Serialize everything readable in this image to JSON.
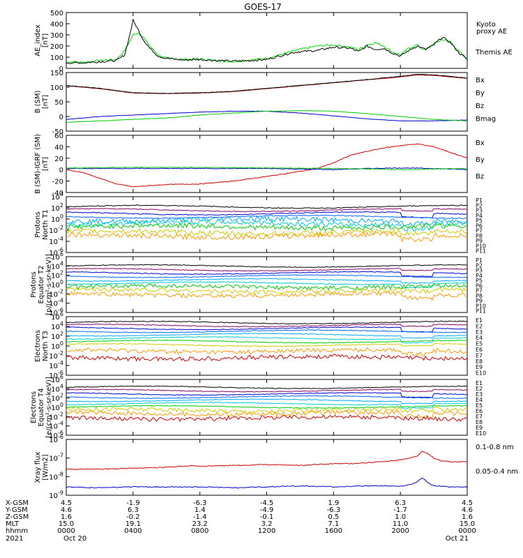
{
  "title": "GOES-17",
  "chart_data": [
    {
      "type": "line",
      "ylabel": [
        "AE_index",
        "[nT]"
      ],
      "ylim": [
        0,
        500
      ],
      "yticks": [
        "0",
        "100",
        "200",
        "300",
        "400",
        "500"
      ],
      "legend": [
        {
          "text": "Kyoto",
          "color": "#00cc00"
        },
        {
          "text": "proxy AE",
          "color": "#00cc00"
        },
        {
          "text": "Themis AE",
          "color": "#000000"
        }
      ],
      "series": [
        {
          "color": "#00dd00",
          "x": [
            0,
            1,
            2,
            3,
            3.5,
            4,
            4.3,
            4.6,
            5,
            5.5,
            6,
            7,
            8,
            9,
            10,
            11,
            12,
            12.5,
            13,
            13.5,
            14,
            15,
            16,
            17,
            17.5,
            18,
            18.5,
            19,
            19.5,
            20,
            20.5,
            21,
            21.5,
            22,
            22.5,
            23,
            23.5,
            24
          ],
          "values": [
            60,
            55,
            70,
            80,
            160,
            300,
            320,
            280,
            200,
            120,
            90,
            80,
            85,
            70,
            60,
            75,
            90,
            110,
            130,
            150,
            170,
            200,
            210,
            190,
            170,
            210,
            230,
            200,
            150,
            120,
            180,
            210,
            160,
            220,
            260,
            240,
            150,
            90
          ]
        },
        {
          "color": "#000000",
          "x": [
            0,
            1,
            2,
            3,
            3.5,
            3.8,
            4,
            4.3,
            4.6,
            5,
            5.5,
            6,
            7,
            8,
            9,
            10,
            11,
            12,
            12.5,
            13,
            13.5,
            14,
            15,
            16,
            17,
            17.5,
            18,
            18.5,
            19,
            19.5,
            20,
            20.5,
            21,
            21.5,
            22,
            22.5,
            23,
            23.5,
            24
          ],
          "values": [
            50,
            50,
            60,
            70,
            120,
            300,
            430,
            350,
            260,
            180,
            110,
            90,
            75,
            80,
            70,
            65,
            70,
            80,
            100,
            120,
            140,
            150,
            160,
            190,
            180,
            150,
            200,
            170,
            180,
            140,
            110,
            160,
            200,
            170,
            210,
            280,
            230,
            140,
            80
          ]
        }
      ]
    },
    {
      "type": "line",
      "ylabel": [
        "B (SM)",
        "[nT]"
      ],
      "ylim": [
        -50,
        150
      ],
      "yticks": [
        "-50",
        "0",
        "50",
        "100",
        "150"
      ],
      "legend": [
        {
          "text": "Bx",
          "color": "#0000cc"
        },
        {
          "text": "By",
          "color": "#00cc00"
        },
        {
          "text": "Bz",
          "color": "#cc0000"
        },
        {
          "text": "Bmag",
          "color": "#000000"
        }
      ],
      "series": [
        {
          "color": "#cc0000",
          "x": [
            0,
            2,
            4,
            6,
            8,
            10,
            12,
            14,
            16,
            18,
            20,
            21,
            22,
            23,
            24
          ],
          "values": [
            105,
            95,
            80,
            78,
            80,
            85,
            95,
            105,
            115,
            125,
            135,
            142,
            140,
            135,
            130
          ]
        },
        {
          "color": "#000000",
          "x": [
            0,
            2,
            4,
            6,
            8,
            10,
            12,
            14,
            16,
            18,
            20,
            21,
            22,
            23,
            24
          ],
          "values": [
            106,
            96,
            81,
            79,
            81,
            86,
            96,
            106,
            116,
            126,
            137,
            144,
            142,
            137,
            131
          ]
        },
        {
          "color": "#0000cc",
          "x": [
            0,
            2,
            4,
            6,
            8,
            10,
            12,
            14,
            16,
            18,
            20,
            22,
            24
          ],
          "values": [
            -10,
            0,
            5,
            10,
            15,
            18,
            18,
            12,
            2,
            -8,
            -15,
            -15,
            -12
          ]
        },
        {
          "color": "#00cc00",
          "x": [
            0,
            2,
            4,
            6,
            8,
            10,
            12,
            14,
            16,
            18,
            20,
            22,
            24
          ],
          "values": [
            -20,
            -15,
            -10,
            -5,
            5,
            12,
            18,
            20,
            18,
            10,
            0,
            -10,
            -15
          ]
        }
      ]
    },
    {
      "type": "line",
      "ylabel": [
        "B (SM)-IGRF (SM)",
        "[nT]"
      ],
      "ylim": [
        -40,
        60
      ],
      "yticks": [
        "-40",
        "-20",
        "0",
        "20",
        "40",
        "60"
      ],
      "legend": [
        {
          "text": "Bx",
          "color": "#0000cc"
        },
        {
          "text": "By",
          "color": "#00cc00"
        },
        {
          "text": "Bz",
          "color": "#cc0000"
        }
      ],
      "series": [
        {
          "color": "#cc0000",
          "x": [
            0,
            1,
            2,
            3,
            4,
            5,
            6,
            8,
            10,
            12,
            14,
            15,
            16,
            17,
            18,
            19,
            20,
            21,
            22,
            23,
            24
          ],
          "values": [
            0,
            -5,
            -15,
            -25,
            -30,
            -28,
            -26,
            -25,
            -20,
            -12,
            -3,
            2,
            12,
            25,
            32,
            38,
            42,
            45,
            40,
            30,
            20
          ]
        },
        {
          "color": "#0000cc",
          "x": [
            0,
            4,
            8,
            12,
            16,
            18,
            20,
            22,
            24
          ],
          "values": [
            2,
            2,
            2,
            2,
            0,
            2,
            3,
            2,
            0
          ]
        },
        {
          "color": "#00cc00",
          "x": [
            0,
            4,
            8,
            12,
            16,
            18,
            20,
            22,
            24
          ],
          "values": [
            3,
            4,
            4,
            3,
            2,
            1,
            0,
            1,
            2
          ]
        }
      ]
    },
    {
      "type": "line",
      "ylabel": [
        "Protons",
        "North T1"
      ],
      "log": true,
      "ylim": [
        -6,
        4
      ],
      "yticks": [
        {
          "base": "10",
          "exp": "4"
        },
        {
          "base": "10",
          "exp": "2"
        },
        {
          "base": "10",
          "exp": "0"
        },
        {
          "base": "10",
          "exp": "-2"
        },
        {
          "base": "10",
          "exp": "-4"
        },
        {
          "base": "10",
          "exp": "-6"
        }
      ],
      "legend": [
        {
          "text": "P1",
          "color": "#000000"
        },
        {
          "text": "P2",
          "color": "#880066"
        },
        {
          "text": "P3",
          "color": "#0000cc"
        },
        {
          "text": "P4",
          "color": "#0066ff"
        },
        {
          "text": "P5",
          "color": "#00aaff"
        },
        {
          "text": "P6",
          "color": "#00cccc"
        },
        {
          "text": "P7",
          "color": "#00cc00"
        },
        {
          "text": "P8",
          "color": "#cccc00"
        },
        {
          "text": "P9",
          "color": "#ff9900"
        },
        {
          "text": "P10",
          "color": "#cc0000"
        },
        {
          "text": "P11",
          "color": "#aa0000"
        }
      ],
      "levels": [
        2.2,
        1.6,
        1.0,
        0.4,
        -0.2,
        -0.8,
        -1.4,
        -2.4,
        -3.0
      ],
      "colors": [
        "#000000",
        "#880066",
        "#0000cc",
        "#0066ff",
        "#00aaff",
        "#00cccc",
        "#00cc00",
        "#cccc00",
        "#ff9900"
      ]
    },
    {
      "type": "line",
      "ylabel": [
        "Protons",
        "Equator T2",
        "[p/(cm²-s-sr-keV)]"
      ],
      "log": true,
      "ylim": [
        -6,
        6
      ],
      "yticks": [
        {
          "base": "10",
          "exp": "6"
        },
        {
          "base": "10",
          "exp": "4"
        },
        {
          "base": "10",
          "exp": "2"
        },
        {
          "base": "10",
          "exp": "0"
        },
        {
          "base": "10",
          "exp": "-2"
        },
        {
          "base": "10",
          "exp": "-4"
        },
        {
          "base": "10",
          "exp": "-6"
        }
      ],
      "legend": [
        {
          "text": "P1",
          "color": "#000000"
        },
        {
          "text": "P2",
          "color": "#880066"
        },
        {
          "text": "P3",
          "color": "#0000cc"
        },
        {
          "text": "P4",
          "color": "#0066ff"
        },
        {
          "text": "P5",
          "color": "#00aaff"
        },
        {
          "text": "P6",
          "color": "#00cccc"
        },
        {
          "text": "P7",
          "color": "#00cc00"
        },
        {
          "text": "P8",
          "color": "#cccc00"
        },
        {
          "text": "P9",
          "color": "#ff9900"
        },
        {
          "text": "P10",
          "color": "#cc0000"
        },
        {
          "text": "P11",
          "color": "#aa0000"
        }
      ],
      "levels": [
        4.0,
        3.2,
        2.5,
        1.8,
        1.0,
        0.3,
        -0.5,
        -1.3,
        -2.2
      ],
      "colors": [
        "#000000",
        "#880066",
        "#0000cc",
        "#0066ff",
        "#00aaff",
        "#00cccc",
        "#00cc00",
        "#cccc00",
        "#ff9900"
      ]
    },
    {
      "type": "line",
      "ylabel": [
        "Electrons",
        "North T3"
      ],
      "log": true,
      "ylim": [
        -6,
        6
      ],
      "yticks": [
        {
          "base": "10",
          "exp": "6"
        },
        {
          "base": "10",
          "exp": "4"
        },
        {
          "base": "10",
          "exp": "2"
        },
        {
          "base": "10",
          "exp": "0"
        },
        {
          "base": "10",
          "exp": "-2"
        },
        {
          "base": "10",
          "exp": "-4"
        },
        {
          "base": "10",
          "exp": "-6"
        }
      ],
      "legend": [
        {
          "text": "E1",
          "color": "#000000"
        },
        {
          "text": "E2",
          "color": "#880066"
        },
        {
          "text": "E3",
          "color": "#0000cc"
        },
        {
          "text": "E4",
          "color": "#0066ff"
        },
        {
          "text": "E5",
          "color": "#00aaff"
        },
        {
          "text": "E6",
          "color": "#00cccc"
        },
        {
          "text": "E7",
          "color": "#00cc00"
        },
        {
          "text": "E8",
          "color": "#cccc00"
        },
        {
          "text": "E9",
          "color": "#ff9900"
        },
        {
          "text": "E10",
          "color": "#cc0000"
        }
      ],
      "levels": [
        4.8,
        4.2,
        3.6,
        3.0,
        2.3,
        1.6,
        0.9,
        0.2,
        -1.0,
        -2.4
      ],
      "colors": [
        "#000000",
        "#880066",
        "#0000cc",
        "#0066ff",
        "#00aaff",
        "#00cccc",
        "#00cc00",
        "#cccc00",
        "#ff9900",
        "#cc0000"
      ]
    },
    {
      "type": "line",
      "ylabel": [
        "Electrons",
        "Equator T4",
        "[e/(cm²-s-sr-keV)]"
      ],
      "log": true,
      "ylim": [
        -6,
        6
      ],
      "yticks": [
        {
          "base": "10",
          "exp": "6"
        },
        {
          "base": "10",
          "exp": "4"
        },
        {
          "base": "10",
          "exp": "2"
        },
        {
          "base": "10",
          "exp": "0"
        },
        {
          "base": "10",
          "exp": "-2"
        },
        {
          "base": "10",
          "exp": "-4"
        },
        {
          "base": "10",
          "exp": "-6"
        }
      ],
      "legend": [
        {
          "text": "E1",
          "color": "#000000"
        },
        {
          "text": "E2",
          "color": "#880066"
        },
        {
          "text": "E3",
          "color": "#0000cc"
        },
        {
          "text": "E4",
          "color": "#0066ff"
        },
        {
          "text": "E5",
          "color": "#00aaff"
        },
        {
          "text": "E6",
          "color": "#00cccc"
        },
        {
          "text": "E7",
          "color": "#00cc00"
        },
        {
          "text": "E8",
          "color": "#cccc00"
        },
        {
          "text": "E9",
          "color": "#ff9900"
        },
        {
          "text": "E10",
          "color": "#cc0000"
        }
      ],
      "levels": [
        4.3,
        3.6,
        2.9,
        2.2,
        1.5,
        0.8,
        0.1,
        -0.6,
        -1.3,
        -2.3
      ],
      "colors": [
        "#000000",
        "#880066",
        "#0000cc",
        "#0066ff",
        "#00aaff",
        "#00cccc",
        "#00cc00",
        "#cccc00",
        "#ff9900",
        "#cc0000"
      ]
    },
    {
      "type": "line",
      "ylabel": [
        "Xray flux",
        "[W/m2]"
      ],
      "log": true,
      "ylim": [
        -9,
        -6
      ],
      "yticks": [
        {
          "base": "10",
          "exp": "-6"
        },
        {
          "base": "10",
          "exp": "-7"
        },
        {
          "base": "10",
          "exp": "-8"
        },
        {
          "base": "10",
          "exp": "-9"
        }
      ],
      "legend": [
        {
          "text": "0.1-0.8 nm",
          "color": "#cc0000"
        },
        {
          "text": "0.05-0.4 nm",
          "color": "#0000cc"
        }
      ],
      "series": [
        {
          "color": "#cc0000",
          "x": [
            0,
            2,
            4,
            6,
            7,
            7.5,
            8,
            10,
            12,
            14,
            16,
            17,
            18,
            19,
            20,
            20.5,
            21,
            21.3,
            21.6,
            22,
            22.5,
            23,
            24
          ],
          "values": [
            -7.6,
            -7.6,
            -7.55,
            -7.5,
            -7.45,
            -7.4,
            -7.45,
            -7.4,
            -7.35,
            -7.4,
            -7.3,
            -7.3,
            -7.25,
            -7.2,
            -7.1,
            -7.0,
            -6.9,
            -6.65,
            -6.75,
            -7.0,
            -7.15,
            -7.2,
            -7.2
          ]
        },
        {
          "color": "#0000cc",
          "x": [
            0,
            2,
            4,
            6,
            8,
            10,
            12,
            14,
            16,
            18,
            20,
            20.5,
            21,
            21.3,
            21.6,
            22,
            23,
            24
          ],
          "values": [
            -8.55,
            -8.6,
            -8.55,
            -8.55,
            -8.55,
            -8.6,
            -8.55,
            -8.5,
            -8.55,
            -8.5,
            -8.5,
            -8.45,
            -8.3,
            -8.05,
            -8.3,
            -8.5,
            -8.55,
            -8.55
          ]
        }
      ]
    }
  ],
  "ephemeris": {
    "row_labels": [
      "X-GSM",
      "Y-GSM",
      "Z-GSM",
      "MLT",
      "hhmm",
      "2021"
    ],
    "columns": [
      {
        "values": [
          "4.5",
          "4.6",
          "1.6",
          "15.0",
          "0000",
          "Oct 20"
        ]
      },
      {
        "values": [
          "-1.9",
          "6.3",
          "-0.2",
          "19.1",
          "0400",
          ""
        ]
      },
      {
        "values": [
          "-6.3",
          "1.4",
          "-1.4",
          "23.2",
          "0800",
          ""
        ]
      },
      {
        "values": [
          "-4.5",
          "-4.9",
          "-0.1",
          "3.2",
          "1200",
          ""
        ]
      },
      {
        "values": [
          "1.9",
          "-6.3",
          "0.5",
          "7.1",
          "1600",
          ""
        ]
      },
      {
        "values": [
          "6.3",
          "-1.7",
          "1.0",
          "11.0",
          "2000",
          ""
        ]
      },
      {
        "values": [
          "4.5",
          "4.6",
          "1.6",
          "15.0",
          "0000",
          "Oct 21"
        ]
      }
    ]
  }
}
